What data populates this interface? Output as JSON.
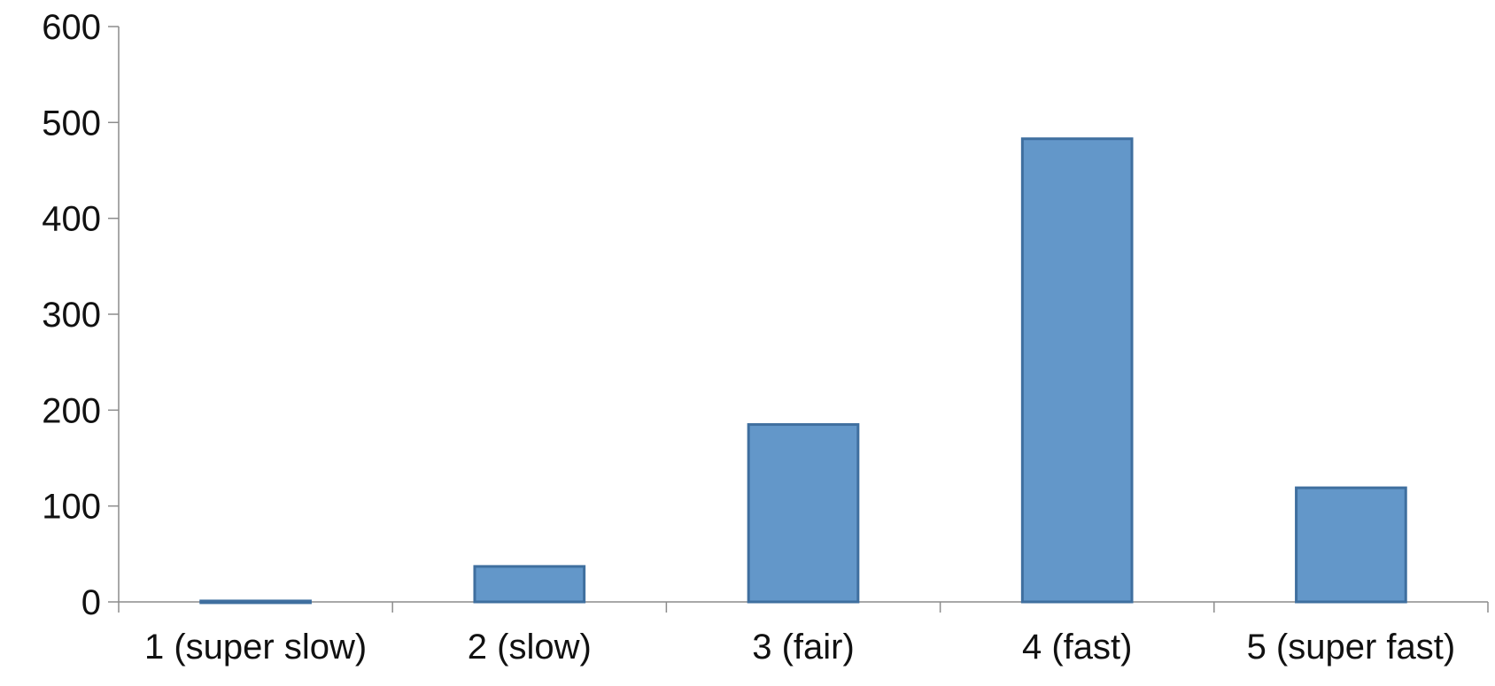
{
  "chart_data": {
    "type": "bar",
    "title": "",
    "xlabel": "",
    "ylabel": "",
    "categories": [
      "1 (super slow)",
      "2 (slow)",
      "3 (fair)",
      "4 (fast)",
      "5 (super fast)"
    ],
    "values": [
      1,
      37,
      185,
      483,
      119
    ],
    "ylim": [
      0,
      600
    ],
    "yticks": [
      0,
      100,
      200,
      300,
      400,
      500,
      600
    ],
    "grid": false,
    "legend": "none",
    "colors": {
      "bar_fill": "#6397c9",
      "bar_edge": "#3f6f9f",
      "axis": "#8c8c8c",
      "tick_text": "#111111"
    }
  }
}
